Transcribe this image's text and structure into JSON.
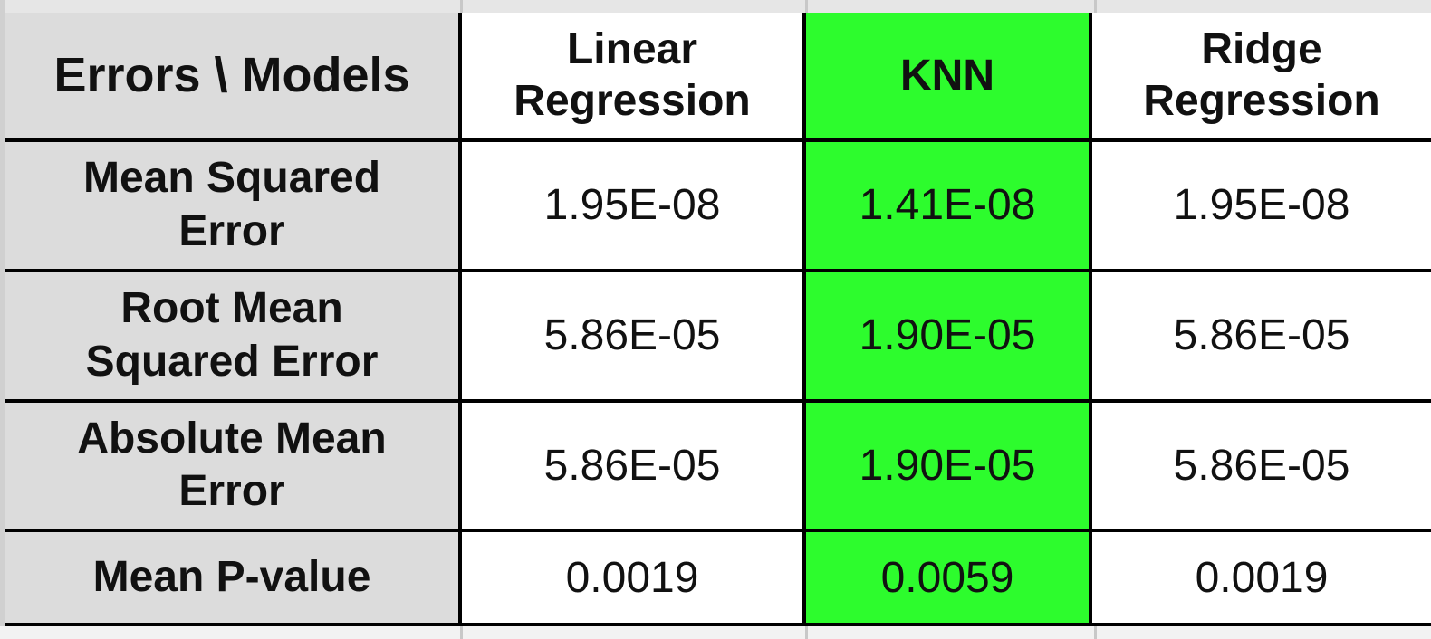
{
  "table": {
    "corner_label": "Errors \\ Models",
    "models": [
      {
        "line1": "Linear",
        "line2": "Regression",
        "highlight": false
      },
      {
        "line1": "KNN",
        "line2": "",
        "highlight": true
      },
      {
        "line1": "Ridge",
        "line2": "Regression",
        "highlight": false
      }
    ],
    "rows": [
      {
        "label_line1": "Mean Squared",
        "label_line2": "Error",
        "values": [
          "1.95E-08",
          "1.41E-08",
          "1.95E-08"
        ]
      },
      {
        "label_line1": "Root Mean",
        "label_line2": "Squared Error",
        "values": [
          "5.86E-05",
          "1.90E-05",
          "5.86E-05"
        ]
      },
      {
        "label_line1": "Absolute Mean",
        "label_line2": "Error",
        "values": [
          "5.86E-05",
          "1.90E-05",
          "5.86E-05"
        ]
      },
      {
        "label_line1": "Mean P-value",
        "label_line2": "",
        "values": [
          "0.0019",
          "0.0059",
          "0.0019"
        ]
      }
    ],
    "colors": {
      "highlight": "#2dfc2d",
      "header_gray": "#dcdcdc",
      "border": "#000000"
    }
  }
}
